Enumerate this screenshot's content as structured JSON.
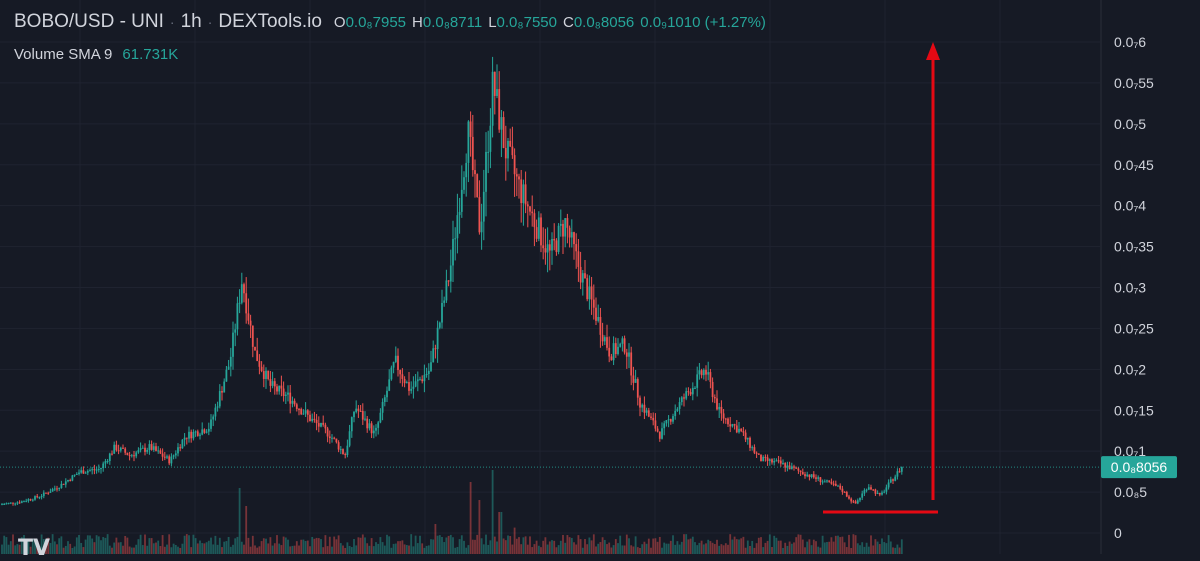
{
  "header": {
    "symbol": "BOBO/USD - UNI",
    "interval": "1h",
    "source": "DEXTools.io",
    "open_label": "O",
    "open_value": "0.0₈7955",
    "high_label": "H",
    "high_value": "0.0₈8711",
    "low_label": "L",
    "low_value": "0.0₈7550",
    "close_label": "C",
    "close_value": "0.0₈8056",
    "change_text": "0.0₉1010 (+1.27%)"
  },
  "volume": {
    "label": "Volume SMA 9",
    "value": "61.731K"
  },
  "logo_text": "TV",
  "colors": {
    "up": "#26a69a",
    "down": "#ef5350",
    "background": "#161a25",
    "annotation": "#e50914"
  },
  "chart_data": {
    "type": "candlestick",
    "y_scale": "linear",
    "ylim": [
      0,
      6.1e-07
    ],
    "y_ticks": [
      {
        "value": 6e-08,
        "label": "0.0₇6"
      },
      {
        "value": 5.5e-08,
        "label": "0.0₇55"
      },
      {
        "value": 5e-08,
        "label": "0.0₇5"
      },
      {
        "value": 4.5e-08,
        "label": "0.0₇45"
      },
      {
        "value": 4e-08,
        "label": "0.0₇4"
      },
      {
        "value": 3.5e-08,
        "label": "0.0₇35"
      },
      {
        "value": 3e-08,
        "label": "0.0₇3"
      },
      {
        "value": 2.5e-08,
        "label": "0.0₇25"
      },
      {
        "value": 2e-08,
        "label": "0.0₇2"
      },
      {
        "value": 1.5e-08,
        "label": "0.0₇15"
      },
      {
        "value": 1e-08,
        "label": "0.0₇1"
      },
      {
        "value": 5e-09,
        "label": "0.0₈5"
      },
      {
        "value": 0,
        "label": "0"
      }
    ],
    "last_price": 8.056e-09,
    "last_price_label": "0.0₈8056",
    "price_path": [
      [
        0,
        3.5e-09
      ],
      [
        20,
        3.8e-09
      ],
      [
        40,
        4.5e-09
      ],
      [
        60,
        5.8e-09
      ],
      [
        80,
        7.5e-09
      ],
      [
        100,
        7.8e-09
      ],
      [
        115,
        1.05e-08
      ],
      [
        130,
        9.5e-09
      ],
      [
        150,
        1.05e-08
      ],
      [
        170,
        8.8e-09
      ],
      [
        185,
        1.18e-08
      ],
      [
        210,
        1.3e-08
      ],
      [
        230,
        2.1e-08
      ],
      [
        242,
        3.1e-08
      ],
      [
        255,
        2.2e-08
      ],
      [
        270,
        1.8e-08
      ],
      [
        290,
        1.65e-08
      ],
      [
        310,
        1.4e-08
      ],
      [
        330,
        1.2e-08
      ],
      [
        345,
        9.5e-09
      ],
      [
        355,
        1.55e-08
      ],
      [
        375,
        1.2e-08
      ],
      [
        395,
        2.1e-08
      ],
      [
        410,
        1.75e-08
      ],
      [
        430,
        2e-08
      ],
      [
        450,
        3.2e-08
      ],
      [
        468,
        4.9e-08
      ],
      [
        480,
        3.7e-08
      ],
      [
        493,
        5.5e-08
      ],
      [
        505,
        4.7e-08
      ],
      [
        520,
        4.2e-08
      ],
      [
        535,
        3.8e-08
      ],
      [
        550,
        3.4e-08
      ],
      [
        565,
        3.8e-08
      ],
      [
        580,
        3.2e-08
      ],
      [
        595,
        2.7e-08
      ],
      [
        610,
        2.2e-08
      ],
      [
        625,
        2.3e-08
      ],
      [
        640,
        1.6e-08
      ],
      [
        660,
        1.2e-08
      ],
      [
        675,
        1.5e-08
      ],
      [
        690,
        1.75e-08
      ],
      [
        705,
        2e-08
      ],
      [
        720,
        1.45e-08
      ],
      [
        740,
        1.25e-08
      ],
      [
        760,
        9e-09
      ],
      [
        780,
        8.5e-09
      ],
      [
        800,
        7.5e-09
      ],
      [
        820,
        6.5e-09
      ],
      [
        840,
        5.5e-09
      ],
      [
        855,
        3.5e-09
      ],
      [
        868,
        5.8e-09
      ],
      [
        880,
        4.5e-09
      ],
      [
        892,
        6.5e-09
      ],
      [
        902,
        8.056e-09
      ]
    ],
    "volume_spikes": [
      {
        "x": 240,
        "rel": 0.55
      },
      {
        "x": 246,
        "rel": 0.4
      },
      {
        "x": 470,
        "rel": 0.6
      },
      {
        "x": 480,
        "rel": 0.45
      },
      {
        "x": 493,
        "rel": 0.7
      },
      {
        "x": 500,
        "rel": 0.35
      },
      {
        "x": 436,
        "rel": 0.25
      },
      {
        "x": 515,
        "rel": 0.22
      },
      {
        "x": 125,
        "rel": 0.15
      }
    ]
  }
}
